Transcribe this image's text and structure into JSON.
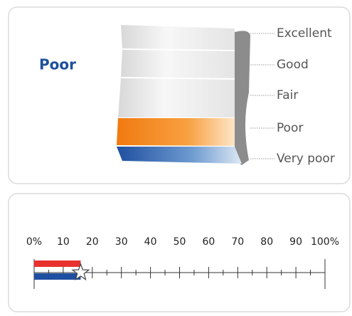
{
  "rating": {
    "label": "Poor",
    "levels": [
      "Excellent",
      "Good",
      "Fair",
      "Poor",
      "Very poor"
    ]
  },
  "progress": {
    "value": 16,
    "xlim": [
      0,
      100
    ],
    "xticks": [
      {
        "value": 0,
        "label": "0%"
      },
      10,
      20,
      30,
      40,
      50,
      60,
      70,
      80,
      90,
      {
        "value": 100,
        "label": "100%"
      }
    ]
  }
}
